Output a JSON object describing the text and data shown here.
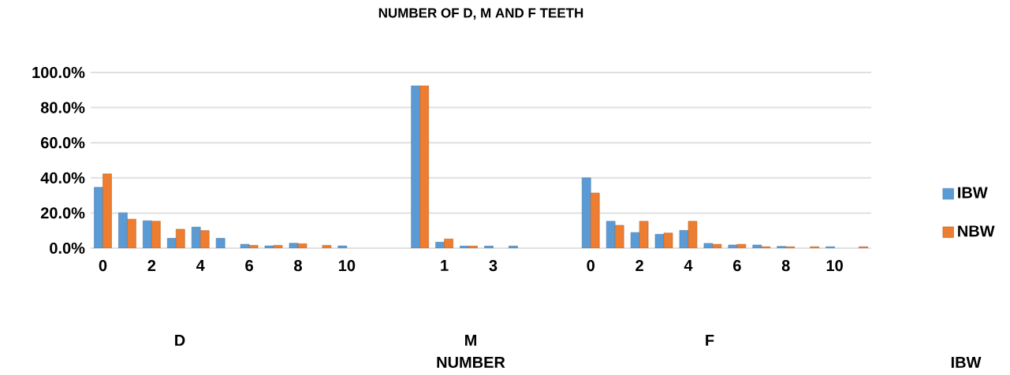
{
  "chart_data": {
    "type": "bar",
    "title": "NUMBER OF D, M AND F TEETH",
    "categories": [
      "0",
      null,
      "2",
      null,
      "4",
      null,
      "6",
      null,
      "8",
      null,
      "10",
      null,
      null,
      null,
      "1",
      null,
      "3",
      null,
      null,
      null,
      "0",
      null,
      "2",
      null,
      "4",
      null,
      "6",
      null,
      "8",
      null,
      "10",
      null
    ],
    "series": [
      {
        "name": "IBW",
        "color": "#5b9bd5",
        "values": [
          34.6,
          20.1,
          15.6,
          5.6,
          12.0,
          5.6,
          2.2,
          1.3,
          2.8,
          null,
          1.3,
          null,
          null,
          92.5,
          3.4,
          1.2,
          1.2,
          1.2,
          null,
          null,
          40.0,
          15.3,
          8.9,
          7.9,
          10.1,
          2.7,
          1.8,
          1.8,
          1.0,
          null,
          0.8,
          null
        ]
      },
      {
        "name": "NBW",
        "color": "#ed7d31",
        "values": [
          42.3,
          16.5,
          15.3,
          10.8,
          10.0,
          null,
          1.6,
          1.6,
          2.5,
          1.6,
          null,
          null,
          null,
          92.5,
          5.2,
          1.2,
          null,
          null,
          null,
          null,
          31.4,
          13.0,
          15.3,
          8.6,
          15.3,
          2.2,
          2.2,
          0.8,
          0.8,
          0.8,
          null,
          0.8
        ]
      }
    ],
    "ylim": [
      0,
      100
    ],
    "yticks": [
      {
        "value": 0,
        "label": "0.0%"
      },
      {
        "value": 20,
        "label": "20.0%"
      },
      {
        "value": 40,
        "label": "40.0%"
      },
      {
        "value": 60,
        "label": "60.0%"
      },
      {
        "value": 80,
        "label": "80.0%"
      },
      {
        "value": 100,
        "label": "100.0%"
      }
    ],
    "grid": "y",
    "legend": "right",
    "annotations": [
      "D",
      "M",
      "F",
      "NUMBER",
      "IBW"
    ]
  }
}
